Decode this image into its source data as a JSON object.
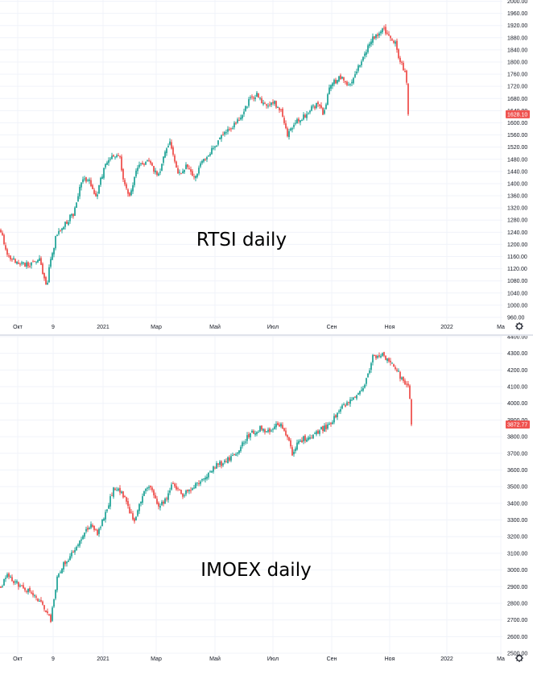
{
  "colors": {
    "up": "#26a69a",
    "down": "#ef5350",
    "grid": "#f0f3fa",
    "axis_text": "#131722",
    "price_tag": "#ef5350"
  },
  "settings_icon": "gear-icon",
  "chart_data": [
    {
      "type": "candlestick",
      "title": "RTSI daily",
      "x_tick_labels": [
        "Окт",
        "9",
        "2021",
        "Мар",
        "Май",
        "Июл",
        "Сен",
        "Ноя",
        "2022",
        "Ма"
      ],
      "y_tick_labels": [
        "2000.00",
        "1960.00",
        "1920.00",
        "1880.00",
        "1840.00",
        "1800.00",
        "1760.00",
        "1720.00",
        "1680.00",
        "1640.00",
        "1600.00",
        "1560.00",
        "1520.00",
        "1480.00",
        "1440.00",
        "1400.00",
        "1360.00",
        "1320.00",
        "1280.00",
        "1240.00",
        "1200.00",
        "1160.00",
        "1120.00",
        "1080.00",
        "1040.00",
        "1000.00",
        "960.00"
      ],
      "ylim": [
        960,
        2000
      ],
      "last_price": "1628.10",
      "last_price_value": 1628.1,
      "grid": true,
      "anchors": [
        [
          0,
          1245
        ],
        [
          8,
          1170
        ],
        [
          20,
          1140
        ],
        [
          35,
          1130
        ],
        [
          48,
          1150
        ],
        [
          53,
          1090
        ],
        [
          57,
          1060
        ],
        [
          61,
          1140
        ],
        [
          68,
          1220
        ],
        [
          80,
          1270
        ],
        [
          90,
          1300
        ],
        [
          100,
          1400
        ],
        [
          108,
          1420
        ],
        [
          118,
          1350
        ],
        [
          128,
          1450
        ],
        [
          138,
          1490
        ],
        [
          148,
          1480
        ],
        [
          155,
          1380
        ],
        [
          160,
          1360
        ],
        [
          170,
          1460
        ],
        [
          185,
          1470
        ],
        [
          195,
          1420
        ],
        [
          203,
          1490
        ],
        [
          210,
          1540
        ],
        [
          220,
          1430
        ],
        [
          230,
          1460
        ],
        [
          240,
          1420
        ],
        [
          252,
          1480
        ],
        [
          265,
          1520
        ],
        [
          280,
          1570
        ],
        [
          295,
          1610
        ],
        [
          310,
          1680
        ],
        [
          318,
          1690
        ],
        [
          328,
          1660
        ],
        [
          338,
          1670
        ],
        [
          348,
          1640
        ],
        [
          356,
          1560
        ],
        [
          365,
          1600
        ],
        [
          380,
          1630
        ],
        [
          395,
          1670
        ],
        [
          400,
          1620
        ],
        [
          410,
          1730
        ],
        [
          425,
          1750
        ],
        [
          432,
          1720
        ],
        [
          440,
          1760
        ],
        [
          450,
          1820
        ],
        [
          462,
          1880
        ],
        [
          474,
          1910
        ],
        [
          482,
          1880
        ],
        [
          490,
          1860
        ],
        [
          496,
          1800
        ],
        [
          502,
          1770
        ],
        [
          505,
          1720
        ],
        [
          507,
          1628.1
        ]
      ]
    },
    {
      "type": "candlestick",
      "title": "IMOEX daily",
      "x_tick_labels": [
        "Окт",
        "9",
        "2021",
        "Мар",
        "Май",
        "Июл",
        "Сен",
        "Ноя",
        "2022",
        "Ма"
      ],
      "y_tick_labels": [
        "4400.00",
        "4300.00",
        "4200.00",
        "4100.00",
        "4000.00",
        "3900.00",
        "3800.00",
        "3700.00",
        "3600.00",
        "3500.00",
        "3400.00",
        "3300.00",
        "3200.00",
        "3100.00",
        "3000.00",
        "2900.00",
        "2800.00",
        "2700.00",
        "2600.00",
        "2500.00"
      ],
      "ylim": [
        2500,
        4400
      ],
      "last_price": "3872.77",
      "last_price_value": 3872.77,
      "grid": true,
      "anchors": [
        [
          0,
          2900
        ],
        [
          8,
          2970
        ],
        [
          20,
          2920
        ],
        [
          35,
          2880
        ],
        [
          48,
          2820
        ],
        [
          55,
          2760
        ],
        [
          62,
          2700
        ],
        [
          70,
          2950
        ],
        [
          80,
          3050
        ],
        [
          90,
          3100
        ],
        [
          100,
          3200
        ],
        [
          112,
          3280
        ],
        [
          120,
          3220
        ],
        [
          130,
          3350
        ],
        [
          140,
          3480
        ],
        [
          150,
          3470
        ],
        [
          158,
          3380
        ],
        [
          165,
          3290
        ],
        [
          175,
          3440
        ],
        [
          185,
          3510
        ],
        [
          195,
          3380
        ],
        [
          205,
          3420
        ],
        [
          213,
          3520
        ],
        [
          225,
          3450
        ],
        [
          240,
          3500
        ],
        [
          252,
          3550
        ],
        [
          265,
          3620
        ],
        [
          280,
          3650
        ],
        [
          295,
          3720
        ],
        [
          310,
          3820
        ],
        [
          322,
          3850
        ],
        [
          335,
          3820
        ],
        [
          345,
          3880
        ],
        [
          352,
          3850
        ],
        [
          358,
          3760
        ],
        [
          362,
          3700
        ],
        [
          372,
          3780
        ],
        [
          385,
          3800
        ],
        [
          400,
          3850
        ],
        [
          410,
          3870
        ],
        [
          420,
          3970
        ],
        [
          432,
          4000
        ],
        [
          445,
          4060
        ],
        [
          455,
          4150
        ],
        [
          462,
          4280
        ],
        [
          474,
          4290
        ],
        [
          484,
          4250
        ],
        [
          492,
          4200
        ],
        [
          500,
          4120
        ],
        [
          506,
          4100
        ],
        [
          510,
          3980
        ],
        [
          511,
          3872.77
        ]
      ]
    }
  ]
}
